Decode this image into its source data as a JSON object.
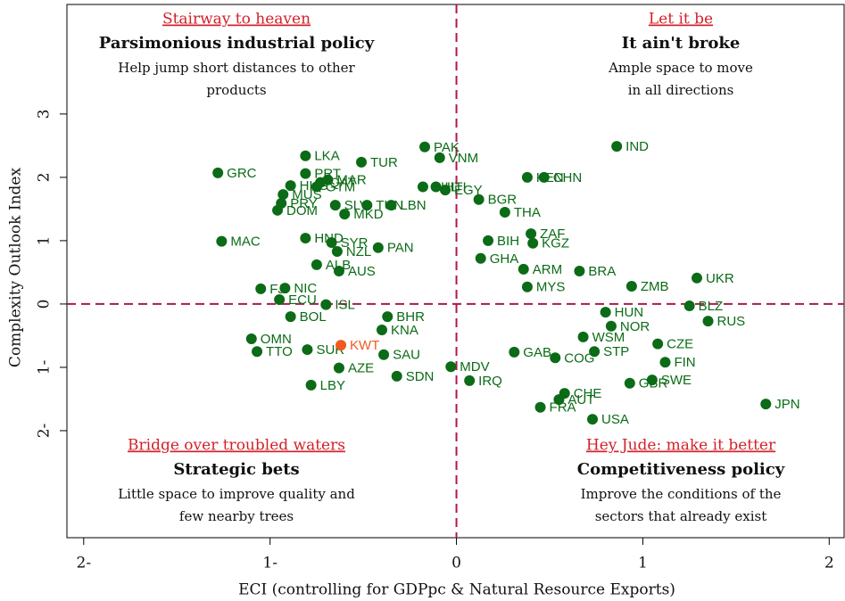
{
  "chart_data": {
    "type": "scatter",
    "xlabel": "ECI (controlling for GDPpc & Natural Resource Exports)",
    "ylabel": "Complexity Outlook Index",
    "xlim": [
      -2.09,
      2.08
    ],
    "ylim": [
      -3.69,
      4.73
    ],
    "xticks": [
      {
        "value": -2,
        "label": "2-"
      },
      {
        "value": -1,
        "label": "1-"
      },
      0,
      1,
      2
    ],
    "yticks": [
      {
        "value": -2,
        "label": "2-"
      },
      {
        "value": -1,
        "label": "1-"
      },
      0,
      1,
      2,
      3
    ],
    "vline": 0,
    "hline": 0,
    "color": "#0b6b16",
    "highlight": "KWT",
    "highlight_color": "#f05a1e",
    "line_color": "#b0174a",
    "annotations": [
      {
        "title": "Stairway to heaven",
        "heading": "Parsimonious industrial policy",
        "text": [
          "Help jump short distances to other",
          "products"
        ]
      },
      {
        "title": "Let it be",
        "heading": "It ain't broke",
        "text": [
          "Ample space to move",
          "in all directions"
        ]
      },
      {
        "title": "Bridge over troubled waters",
        "heading": "Strategic bets",
        "text": [
          "Little space to improve quality and",
          "few nearby trees"
        ]
      },
      {
        "title": "Hey Jude: make it better",
        "heading": "Competitiveness policy",
        "text": [
          "Improve the conditions of the",
          "sectors that already exist"
        ]
      }
    ],
    "labels": [
      "GRC",
      "MAC",
      "LKA",
      "PRT",
      "TUR",
      "HKG",
      "QAT",
      "MAR",
      "GTM",
      "MUS",
      "PRY",
      "SLV",
      "DOM",
      "MKD",
      "TUN",
      "LBN",
      "PAK",
      "VNM",
      "IND",
      "CHN",
      "KEN",
      "HTI",
      "PHL",
      "EGY",
      "BGR",
      "THA",
      "ZAF",
      "BIH",
      "KGZ",
      "HND",
      "SYR",
      "NZL",
      "PAN",
      "ALB",
      "AUS",
      "FJI",
      "NIC",
      "ECU",
      "BOL",
      "ISL",
      "OMN",
      "TTO",
      "SUR",
      "KWT",
      "AZE",
      "LBY",
      "SDN",
      "SAU",
      "KNA",
      "BHR",
      "MDV",
      "IRQ",
      "UKR",
      "BLZ",
      "RUS",
      "ZMB",
      "BRA",
      "ARM",
      "HUN",
      "NOR",
      "CZE",
      "FIN",
      "SWE",
      "GBR",
      "STP",
      "JPN",
      "CHE",
      "AUT",
      "FRA",
      "USA",
      "COG",
      "GAB",
      "WSM",
      "MYS",
      "GHA"
    ],
    "x": [
      -1.28,
      -1.26,
      -0.81,
      -0.81,
      -0.51,
      -0.89,
      -0.73,
      -0.69,
      -0.75,
      -0.93,
      -0.94,
      -0.65,
      -0.96,
      -0.6,
      -0.48,
      -0.35,
      -0.17,
      -0.09,
      0.86,
      0.47,
      0.38,
      -0.11,
      -0.18,
      -0.06,
      0.12,
      0.26,
      0.4,
      0.17,
      0.41,
      -0.81,
      -0.67,
      -0.64,
      -0.42,
      -0.75,
      -0.63,
      -1.05,
      -0.92,
      -0.95,
      -0.89,
      -0.7,
      -1.1,
      -1.07,
      -0.8,
      -0.62,
      -0.63,
      -0.78,
      -0.32,
      -0.39,
      -0.4,
      -0.37,
      -0.03,
      0.07,
      1.29,
      1.25,
      1.35,
      0.94,
      0.66,
      0.36,
      0.8,
      0.83,
      1.08,
      1.12,
      1.05,
      0.93,
      0.74,
      1.66,
      0.58,
      0.55,
      0.45,
      0.73,
      0.53,
      0.31,
      0.68,
      0.38,
      0.13
    ],
    "y": [
      2.07,
      0.99,
      2.34,
      2.06,
      2.24,
      1.87,
      1.92,
      1.96,
      1.85,
      1.73,
      1.59,
      1.56,
      1.48,
      1.42,
      1.56,
      1.56,
      2.48,
      2.31,
      2.49,
      2.0,
      2.0,
      1.85,
      1.85,
      1.8,
      1.65,
      1.45,
      1.11,
      1.0,
      0.96,
      1.04,
      0.97,
      0.83,
      0.89,
      0.62,
      0.52,
      0.24,
      0.25,
      0.07,
      -0.2,
      -0.01,
      -0.55,
      -0.75,
      -0.72,
      -0.65,
      -1.01,
      -1.28,
      -1.14,
      -0.8,
      -0.41,
      -0.2,
      -0.99,
      -1.21,
      0.41,
      -0.03,
      -0.27,
      0.28,
      0.52,
      0.55,
      -0.13,
      -0.35,
      -0.63,
      -0.92,
      -1.2,
      -1.25,
      -0.75,
      -1.58,
      -1.41,
      -1.51,
      -1.63,
      -1.82,
      -0.85,
      -0.76,
      -0.52,
      0.27,
      0.72
    ]
  }
}
